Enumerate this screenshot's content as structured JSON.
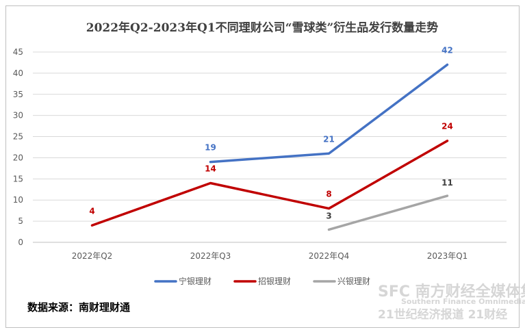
{
  "chart_data": {
    "type": "line",
    "title": "2022年Q2-2023年Q1不同理财公司“雪球类”衍生品发行数量走势",
    "categories": [
      "2022年Q2",
      "2022年Q3",
      "2022年Q4",
      "2023年Q1"
    ],
    "yticks": [
      "0",
      "5",
      "10",
      "15",
      "20",
      "25",
      "30",
      "35",
      "40",
      "45"
    ],
    "ylim": [
      0,
      45
    ],
    "grid": true,
    "legend_position": "bottom",
    "series": [
      {
        "name": "宁银理财",
        "color": "#4472c4",
        "values": [
          null,
          19,
          21,
          42
        ],
        "labels": [
          "",
          "19",
          "21",
          "42"
        ]
      },
      {
        "name": "招银理财",
        "color": "#c00000",
        "values": [
          4,
          14,
          8,
          24
        ],
        "labels": [
          "4",
          "14",
          "8",
          "24"
        ]
      },
      {
        "name": "兴银理财",
        "color": "#a5a5a5",
        "values": [
          null,
          null,
          3,
          11
        ],
        "labels": [
          "",
          "",
          "3",
          "11"
        ]
      }
    ]
  },
  "source_text": "数据来源：南财理财通",
  "watermark": {
    "line1": "SFC 南方财经全媒体集团",
    "line2": "Southern Finance Omnimedia Corp.",
    "line3": "21世纪经济报道 21财经"
  }
}
